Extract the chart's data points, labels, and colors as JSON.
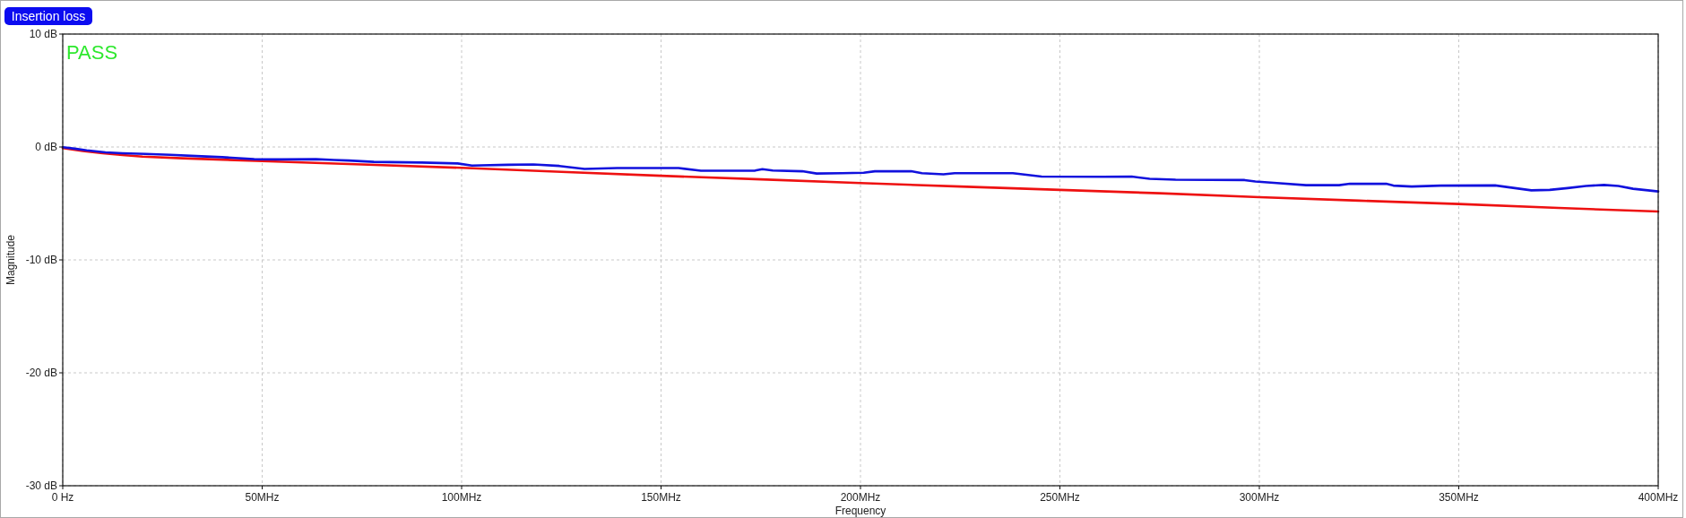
{
  "chart_data": {
    "type": "line",
    "title": "Insertion loss",
    "xlabel": "Frequency",
    "ylabel": "Magnitude",
    "annotations": [
      "PASS"
    ],
    "xlim": [
      0,
      400
    ],
    "xticks": [
      {
        "value": 0,
        "label": "0 Hz"
      },
      {
        "value": 50,
        "label": "50MHz"
      },
      {
        "value": 100,
        "label": "100MHz"
      },
      {
        "value": 150,
        "label": "150MHz"
      },
      {
        "value": 200,
        "label": "200MHz"
      },
      {
        "value": 250,
        "label": "250MHz"
      },
      {
        "value": 300,
        "label": "300MHz"
      },
      {
        "value": 350,
        "label": "350MHz"
      },
      {
        "value": 400,
        "label": "400MHz"
      }
    ],
    "ylim": [
      -30,
      10
    ],
    "yticks": [
      {
        "value": 10,
        "label": "10 dB"
      },
      {
        "value": 0,
        "label": "0 dB"
      },
      {
        "value": -10,
        "label": "-10 dB"
      },
      {
        "value": -20,
        "label": "-20 dB"
      },
      {
        "value": -30,
        "label": "-30 dB"
      }
    ],
    "grid": true,
    "series": [
      {
        "color": "#ee1111",
        "x": [
          0,
          5,
          10,
          15,
          20,
          30,
          40,
          50,
          75,
          100,
          125,
          150,
          175,
          200,
          225,
          250,
          275,
          300,
          325,
          350,
          375,
          400
        ],
        "values": [
          -0.1,
          -0.35,
          -0.55,
          -0.72,
          -0.85,
          -1.0,
          -1.12,
          -1.25,
          -1.55,
          -1.85,
          -2.2,
          -2.55,
          -2.87,
          -3.2,
          -3.5,
          -3.8,
          -4.1,
          -4.45,
          -4.75,
          -5.05,
          -5.4,
          -5.72
        ]
      },
      {
        "color": "#1111dd",
        "x": [
          0,
          3,
          6,
          10.7,
          15,
          20.8,
          27,
          33.5,
          40,
          48,
          55,
          63.5,
          68,
          71.7,
          78,
          90,
          99,
          102.6,
          111.6,
          118,
          124.5,
          130.8,
          139,
          154.4,
          160,
          173.6,
          175.4,
          178,
          185.4,
          189,
          195.4,
          200.8,
          203.6,
          212.7,
          215.4,
          220.8,
          223.6,
          238.2,
          245.4,
          260.7,
          268,
          272.5,
          279,
          296.3,
          299,
          304.4,
          311.7,
          320,
          322.7,
          331.8,
          333.6,
          338.2,
          345.4,
          359.1,
          362.8,
          368.2,
          372.8,
          377.3,
          381.9,
          386.4,
          390,
          393.7,
          397.4,
          400
        ],
        "values": [
          -0.02,
          -0.15,
          -0.3,
          -0.48,
          -0.55,
          -0.62,
          -0.7,
          -0.8,
          -0.9,
          -1.08,
          -1.1,
          -1.08,
          -1.15,
          -1.2,
          -1.32,
          -1.38,
          -1.46,
          -1.65,
          -1.58,
          -1.55,
          -1.68,
          -1.95,
          -1.87,
          -1.87,
          -2.1,
          -2.09,
          -1.96,
          -2.08,
          -2.15,
          -2.35,
          -2.32,
          -2.28,
          -2.15,
          -2.15,
          -2.32,
          -2.42,
          -2.32,
          -2.32,
          -2.62,
          -2.64,
          -2.62,
          -2.82,
          -2.9,
          -2.93,
          -3.05,
          -3.2,
          -3.38,
          -3.38,
          -3.26,
          -3.26,
          -3.42,
          -3.5,
          -3.42,
          -3.4,
          -3.58,
          -3.84,
          -3.8,
          -3.64,
          -3.45,
          -3.36,
          -3.45,
          -3.7,
          -3.84,
          -3.94
        ]
      }
    ]
  }
}
